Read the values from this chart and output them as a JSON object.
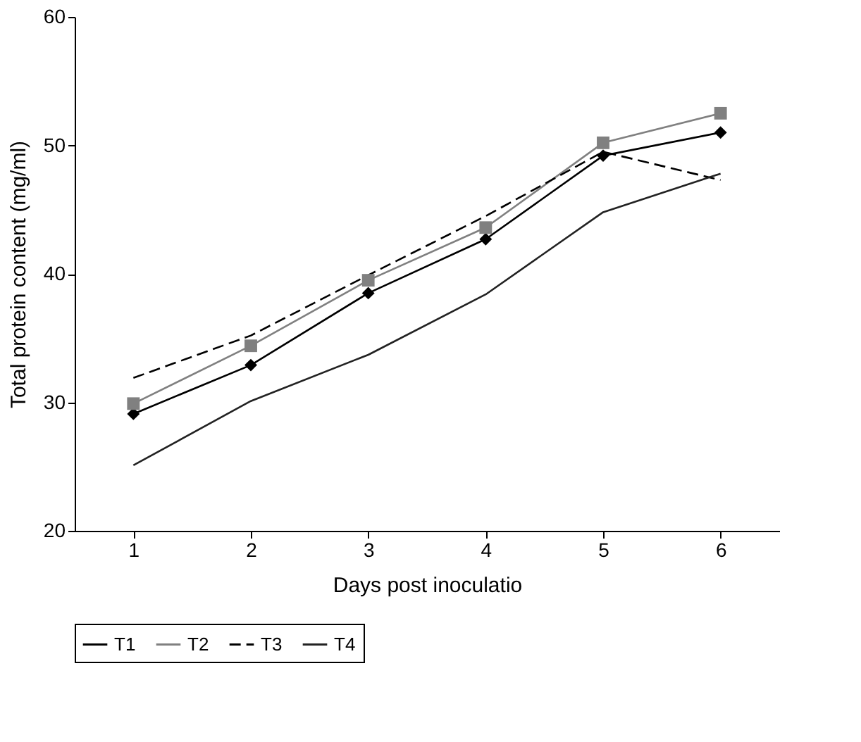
{
  "chart_data": {
    "type": "line",
    "xlabel": "Days post inoculatio",
    "ylabel": "Total protein content (mg/ml)",
    "categories": [
      "1",
      "2",
      "3",
      "4",
      "5",
      "6"
    ],
    "ylim": [
      20,
      60
    ],
    "yticks": [
      20,
      30,
      40,
      50,
      60
    ],
    "grid": false,
    "legend": "bottom",
    "series": [
      {
        "name": "T1",
        "color": "#000000",
        "marker": "diamond",
        "line_style": "solid",
        "values": [
          29.1,
          32.9,
          38.5,
          42.7,
          49.2,
          51.0
        ]
      },
      {
        "name": "T2",
        "color": "#808080",
        "marker": "square",
        "line_style": "solid",
        "values": [
          29.9,
          34.4,
          39.5,
          43.6,
          50.2,
          52.5
        ]
      },
      {
        "name": "T3",
        "color": "#000000",
        "marker": "none",
        "line_style": "dashed",
        "values": [
          31.9,
          35.2,
          39.9,
          44.5,
          49.5,
          47.3
        ]
      },
      {
        "name": "T4",
        "color": "#222222",
        "marker": "none",
        "line_style": "solid",
        "values": [
          25.1,
          30.1,
          33.7,
          38.4,
          44.8,
          47.8
        ]
      }
    ]
  }
}
